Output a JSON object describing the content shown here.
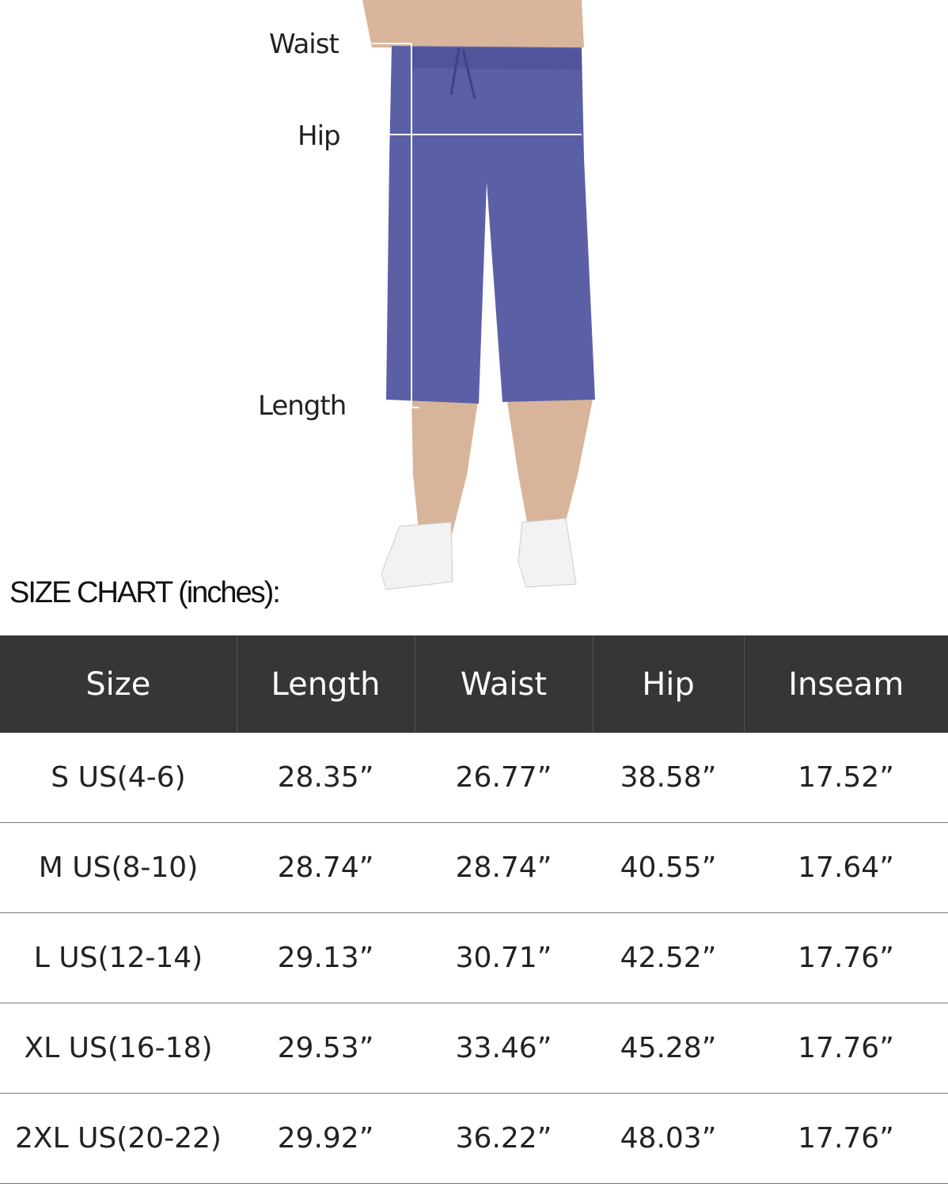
{
  "measure_labels": {
    "waist": "Waist",
    "hip": "Hip",
    "length": "Length"
  },
  "chart_title": "SIZE CHART (inches):",
  "colors": {
    "header_bg": "#363636",
    "pants": "#5b5fa6"
  },
  "table": {
    "headers": [
      "Size",
      "Length",
      "Waist",
      "Hip",
      "Inseam"
    ],
    "rows": [
      [
        "S US(4-6)",
        "28.35”",
        "26.77”",
        "38.58”",
        "17.52”"
      ],
      [
        "M US(8-10)",
        "28.74”",
        "28.74”",
        "40.55”",
        "17.64”"
      ],
      [
        "L US(12-14)",
        "29.13”",
        "30.71”",
        "42.52”",
        "17.76”"
      ],
      [
        "XL US(16-18)",
        "29.53”",
        "33.46”",
        "45.28”",
        "17.76”"
      ],
      [
        "2XL US(20-22)",
        "29.92”",
        "36.22”",
        "48.03”",
        "17.76”"
      ]
    ]
  }
}
